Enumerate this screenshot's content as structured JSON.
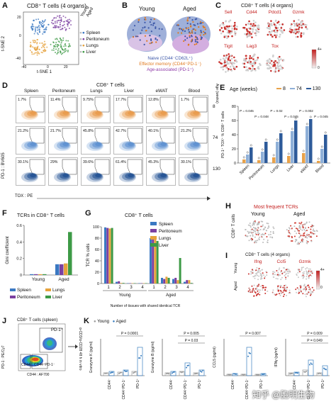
{
  "panels": {
    "A": {
      "letter": "A",
      "title": "CD8⁺ T cells (4 organs)",
      "xlabel": "t-SNE 1",
      "ylabel": "t-SNE 2",
      "ticks_x": [
        "-40",
        "0",
        "20"
      ],
      "ticks_y": [
        "20",
        "0",
        "-40"
      ],
      "legend_head": [
        "Young",
        "Aged"
      ],
      "legend": [
        {
          "label": "Spleen",
          "color": "#3a78c2"
        },
        {
          "label": "Peritoneum",
          "color": "#7b3fa0"
        },
        {
          "label": "Lungs",
          "color": "#e6a23c"
        },
        {
          "label": "Liver",
          "color": "#3d9a46"
        }
      ]
    },
    "B": {
      "letter": "B",
      "young": "Young",
      "aged": "Aged",
      "legend": [
        {
          "label": "Naive (CD44⁻CD62L⁺)",
          "color": "#3d58a8"
        },
        {
          "label": "Effector memory (CD44⁺PD-1⁻)",
          "color": "#e07a20"
        },
        {
          "label": "Age-associated (PD-1⁺)",
          "color": "#8e3aa6"
        }
      ]
    },
    "C": {
      "letter": "C",
      "title": "CD8⁺ T cells (4 organs)",
      "genes_row1": [
        "Sell",
        "Cd44",
        "Pdcd1",
        "Gzmk"
      ],
      "genes_row2": [
        "Tigit",
        "Lag3",
        "Tox"
      ],
      "scale_max": "4+",
      "scale_min": "0"
    },
    "D": {
      "letter": "D",
      "title": "CD8⁺ T cells",
      "tissues": [
        "Spleen",
        "Peritoneum",
        "Lungs",
        "Liver",
        "eWAT",
        "Blood"
      ],
      "age_axis": "Age (weeks)",
      "ages": [
        "8",
        "74",
        "130"
      ],
      "ylabel": "PD-1 : BV605",
      "xlabel": "TOX : PE",
      "row8": [
        "1.7%",
        "11.4%",
        "9.75%",
        "17.7%",
        "12.8%",
        "1.7%"
      ],
      "row74": [
        "21.2%",
        "21.7%",
        "45.8%",
        "42.7%",
        "40.1%",
        "21.2%"
      ],
      "row130": [
        "30.1%",
        "29%",
        "39.6%",
        "61.4%",
        "45.3%",
        "30.1%"
      ]
    },
    "E": {
      "letter": "E",
      "age_label": "Age (weeks)",
      "ages": [
        "8",
        "74",
        "130"
      ],
      "ylabel": "PD-1⁺ TOX⁺ % CD8⁺ T cells",
      "categories": [
        "Spleen",
        "Peritoneum",
        "Lungs",
        "Liver",
        "eWAT",
        "Blood"
      ],
      "yticks": [
        "0",
        "20",
        "40",
        "60",
        "80"
      ],
      "pvals": [
        "P = 0.045",
        "P = 0.048",
        "P = 0.02",
        "P = 0.045",
        "P = 0.002",
        "P = 0.045"
      ],
      "colors": [
        "#e8a24a",
        "#8fb0d8",
        "#2e5b9a"
      ]
    },
    "F": {
      "letter": "F",
      "title": "TCRs in CD8⁺ T cells",
      "ylabel": "Gini coefficient",
      "yticks": [
        "0",
        "0.2",
        "0.4",
        "0.6"
      ],
      "xcats": [
        "Young",
        "Aged"
      ],
      "legend": [
        {
          "label": "Spleen",
          "color": "#3a78c2"
        },
        {
          "label": "Lungs",
          "color": "#e6a23c"
        },
        {
          "label": "Peritoneum",
          "color": "#7b3fa0"
        },
        {
          "label": "Liver",
          "color": "#3d9a46"
        }
      ]
    },
    "G": {
      "letter": "G",
      "title": "CD8⁺ T cells",
      "ylabel": "TCR % cells",
      "yticks": [
        "0",
        "20",
        "40",
        "60",
        "80",
        "100"
      ],
      "xlabel": "Number of tissues with shared identical TCR",
      "groups": [
        "Young",
        "Aged"
      ],
      "xticks": [
        "1",
        "2",
        "3",
        "4",
        "1",
        "2",
        "3",
        "4"
      ],
      "legend": [
        {
          "label": "Spleen",
          "color": "#3a78c2"
        },
        {
          "label": "Peritoneum",
          "color": "#7b3fa0"
        },
        {
          "label": "Lungs",
          "color": "#e6a23c"
        },
        {
          "label": "Liver",
          "color": "#3d9a46"
        }
      ]
    },
    "H": {
      "letter": "H",
      "title": "Most frequent TCRs",
      "ylabel": "CD8⁺ T cells",
      "young": "Young",
      "aged": "Aged"
    },
    "I": {
      "letter": "I",
      "title": "CD8⁺ T cells (4 organs)",
      "genes": [
        "Ifng",
        "Ccl5",
        "Gzmk"
      ],
      "rows": [
        "Young",
        "Aged"
      ],
      "scale_max": "4+",
      "scale_min": "0"
    },
    "J": {
      "letter": "J",
      "title": "CD8⁺ T cells (spleen)",
      "ylabel": "PD-1 : PE/Cy7",
      "xlabel": "CD44 : AF700",
      "gates": [
        "PD-1⁺",
        "CD44⁻",
        "CD44⁺PD-1⁻"
      ],
      "arrow_text": "α-CD3/α-CD28 48 h in vitro"
    },
    "K": {
      "letter": "K",
      "legend": [
        "Young",
        "Aged"
      ],
      "xcats": [
        "CD44⁻",
        "CD44⁺PD-1⁻",
        "PD-1⁺"
      ],
      "charts": [
        {
          "ylabel": "Granzyme K (pg/ml)",
          "pvals": [
            "P = 0.0001"
          ]
        },
        {
          "ylabel": "Granzyme B (pg/ml)",
          "pvals": [
            "P = 0.005",
            "P = 0.03"
          ]
        },
        {
          "ylabel": "CCL5 (pg/ml)",
          "pvals": [
            "P = 0.007"
          ]
        },
        {
          "ylabel": "IFNγ (pg/ml)",
          "pvals": [
            "P = 0.009",
            "P = 0.049"
          ]
        }
      ]
    }
  },
  "watermark": "知乎 @胞明生物"
}
